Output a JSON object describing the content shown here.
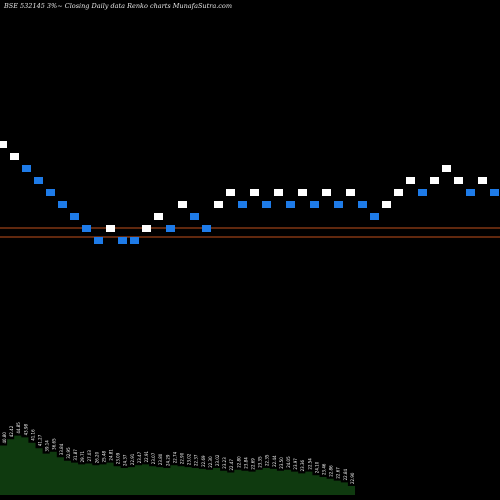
{
  "chart_data": {
    "type": "renko",
    "title": "BSE 532145 3%~  Closing Daily data  Renko  charts MunafaSutra.com",
    "colors": {
      "background": "#000000",
      "up_brick": "#ffffff",
      "down_brick": "#1e7be8",
      "reference_lines": "#c0501c",
      "volume": "#0f3a0f",
      "volume_labels": "#ffffff"
    },
    "reference_levels": [
      22.6,
      22.0
    ],
    "bricks": [
      {
        "value": 28.4,
        "dir": "up"
      },
      {
        "value": 27.6,
        "dir": "up"
      },
      {
        "value": 26.8,
        "dir": "down"
      },
      {
        "value": 26.0,
        "dir": "down"
      },
      {
        "value": 25.2,
        "dir": "down"
      },
      {
        "value": 24.4,
        "dir": "down"
      },
      {
        "value": 23.6,
        "dir": "down"
      },
      {
        "value": 22.8,
        "dir": "down"
      },
      {
        "value": 22.0,
        "dir": "down"
      },
      {
        "value": 22.8,
        "dir": "up"
      },
      {
        "value": 22.0,
        "dir": "down"
      },
      {
        "value": 22.0,
        "dir": "down"
      },
      {
        "value": 22.8,
        "dir": "up"
      },
      {
        "value": 23.6,
        "dir": "up"
      },
      {
        "value": 22.8,
        "dir": "down"
      },
      {
        "value": 24.4,
        "dir": "up"
      },
      {
        "value": 23.6,
        "dir": "down"
      },
      {
        "value": 22.8,
        "dir": "down"
      },
      {
        "value": 24.4,
        "dir": "up"
      },
      {
        "value": 25.2,
        "dir": "up"
      },
      {
        "value": 24.4,
        "dir": "down"
      },
      {
        "value": 25.2,
        "dir": "up"
      },
      {
        "value": 24.4,
        "dir": "down"
      },
      {
        "value": 25.2,
        "dir": "up"
      },
      {
        "value": 24.4,
        "dir": "down"
      },
      {
        "value": 25.2,
        "dir": "up"
      },
      {
        "value": 24.4,
        "dir": "down"
      },
      {
        "value": 25.2,
        "dir": "up"
      },
      {
        "value": 24.4,
        "dir": "down"
      },
      {
        "value": 25.2,
        "dir": "up"
      },
      {
        "value": 24.4,
        "dir": "down"
      },
      {
        "value": 23.6,
        "dir": "down"
      },
      {
        "value": 24.4,
        "dir": "up"
      },
      {
        "value": 25.2,
        "dir": "up"
      },
      {
        "value": 26.0,
        "dir": "up"
      },
      {
        "value": 25.2,
        "dir": "down"
      },
      {
        "value": 26.0,
        "dir": "up"
      },
      {
        "value": 26.8,
        "dir": "up"
      },
      {
        "value": 26.0,
        "dir": "up"
      },
      {
        "value": 25.2,
        "dir": "down"
      },
      {
        "value": 26.0,
        "dir": "up"
      },
      {
        "value": 25.2,
        "dir": "down"
      },
      {
        "value": 26.0,
        "dir": "up"
      },
      {
        "value": 25.2,
        "dir": "down"
      },
      {
        "value": 24.4,
        "dir": "down"
      },
      {
        "value": 23.6,
        "dir": "down"
      },
      {
        "value": 24.4,
        "dir": "up"
      },
      {
        "value": 23.6,
        "dir": "down"
      },
      {
        "value": 22.8,
        "dir": "down"
      },
      {
        "value": 23.6,
        "dir": "up"
      }
    ],
    "volume": {
      "values": [
        55,
        62,
        66,
        64,
        58,
        52,
        46,
        48,
        42,
        38,
        36,
        34,
        35,
        33,
        34,
        36,
        32,
        30,
        31,
        33,
        34,
        32,
        31,
        30,
        33,
        32,
        31,
        30,
        29,
        28,
        30,
        27,
        25,
        28,
        27,
        26,
        28,
        30,
        29,
        27,
        28,
        26,
        24,
        26,
        22,
        20,
        18,
        16,
        14,
        10
      ],
      "labels": [
        "40.80",
        "42.42",
        "44.85",
        "43.98",
        "41.16",
        "41.27",
        "39.14",
        "36.65",
        "33.84",
        "32.95",
        "31.87",
        "29.71",
        "27.03",
        "26.20",
        "25.48",
        "24.81",
        "23.09",
        "24.37",
        "22.91",
        "23.47",
        "22.91",
        "23.07",
        "23.80",
        "24.29",
        "22.74",
        "22.90",
        "23.02",
        "22.37",
        "22.69",
        "22.30",
        "23.02",
        "23.23",
        "22.47",
        "22.80",
        "23.84",
        "22.69",
        "23.35",
        "22.35",
        "22.44",
        "23.50",
        "24.05",
        "23.97",
        "23.36",
        "22.54",
        "24.10",
        "23.46",
        "22.86",
        "22.67",
        "22.84",
        "22.90"
      ]
    }
  }
}
